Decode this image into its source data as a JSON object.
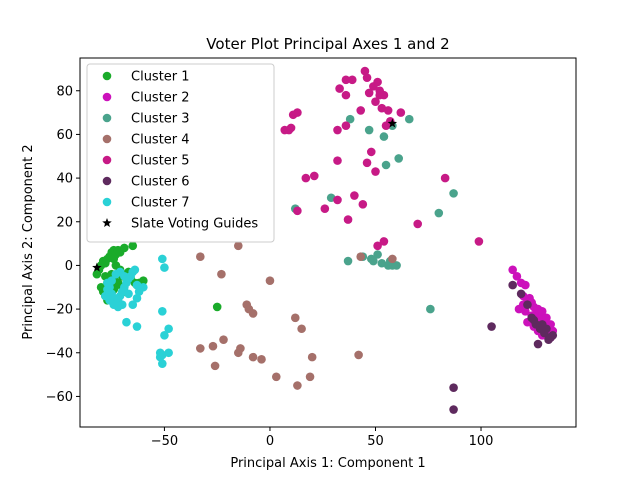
{
  "chart_data": {
    "type": "scatter",
    "title": "Voter Plot Principal Axes 1 and 2",
    "xlabel": "Principal Axis 1: Component 1",
    "ylabel": "Principal Axis 2: Component 2",
    "xlim": [
      -90,
      145
    ],
    "ylim": [
      -74,
      95
    ],
    "xticks": [
      -50,
      0,
      50,
      100
    ],
    "yticks": [
      -60,
      -40,
      -20,
      0,
      20,
      40,
      60,
      80
    ],
    "grid": false,
    "legend_position": "top-left",
    "series": [
      {
        "name": "Cluster 1",
        "color": "#1aab2a",
        "marker": "circle",
        "points": [
          [
            -82,
            -4
          ],
          [
            -81,
            -2
          ],
          [
            -80,
            0
          ],
          [
            -79,
            2
          ],
          [
            -78,
            1
          ],
          [
            -77,
            3
          ],
          [
            -76,
            4
          ],
          [
            -75,
            6
          ],
          [
            -74,
            7
          ],
          [
            -73,
            5
          ],
          [
            -72,
            7
          ],
          [
            -71,
            6
          ],
          [
            -69,
            8
          ],
          [
            -65,
            9
          ],
          [
            -74,
            3
          ],
          [
            -73,
            0
          ],
          [
            -71,
            -2
          ],
          [
            -70,
            -5
          ],
          [
            -68,
            -4
          ],
          [
            -67,
            -3
          ],
          [
            -66,
            -6
          ],
          [
            -64,
            -8
          ],
          [
            -63,
            -9
          ],
          [
            -62,
            -8
          ],
          [
            -61,
            -10
          ],
          [
            -60,
            -7
          ],
          [
            -78,
            -5
          ],
          [
            -77,
            -8
          ],
          [
            -76,
            -10
          ],
          [
            -75,
            -12
          ],
          [
            -74,
            -11
          ],
          [
            -73,
            -9
          ],
          [
            -72,
            -8
          ],
          [
            -80,
            -10
          ],
          [
            -79,
            -12
          ],
          [
            -78,
            -14
          ],
          [
            -77,
            -16
          ],
          [
            -76,
            -7
          ],
          [
            -75,
            -4
          ],
          [
            -74,
            -6
          ],
          [
            -72,
            -4
          ],
          [
            -70,
            -10
          ],
          [
            -69,
            -12
          ],
          [
            -25,
            -19
          ]
        ]
      },
      {
        "name": "Cluster 2",
        "color": "#cc11bb",
        "marker": "circle",
        "points": [
          [
            115,
            -2
          ],
          [
            117,
            -5
          ],
          [
            119,
            -8
          ],
          [
            121,
            -9
          ],
          [
            118,
            -20
          ],
          [
            120,
            -18
          ],
          [
            121,
            -21
          ],
          [
            122,
            -16
          ],
          [
            123,
            -15
          ],
          [
            124,
            -17
          ],
          [
            125,
            -19
          ],
          [
            126,
            -22
          ],
          [
            127,
            -20
          ],
          [
            128,
            -24
          ],
          [
            129,
            -21
          ],
          [
            130,
            -26
          ],
          [
            131,
            -24
          ],
          [
            132,
            -29
          ],
          [
            133,
            -27
          ],
          [
            134,
            -30
          ],
          [
            122,
            -26
          ],
          [
            125,
            -28
          ],
          [
            127,
            -30
          ],
          [
            129,
            -32
          ],
          [
            131,
            -31
          ],
          [
            133,
            -33
          ],
          [
            120,
            -14
          ],
          [
            124,
            -23
          ],
          [
            126,
            -25
          ],
          [
            128,
            -27
          ]
        ]
      },
      {
        "name": "Cluster 3",
        "color": "#4aa38c",
        "marker": "circle",
        "points": [
          [
            38,
            67
          ],
          [
            47,
            62
          ],
          [
            54,
            59
          ],
          [
            61,
            49
          ],
          [
            66,
            67
          ],
          [
            55,
            46
          ],
          [
            58,
            64
          ],
          [
            80,
            24
          ],
          [
            87,
            33
          ],
          [
            76,
            -20
          ],
          [
            12,
            26
          ],
          [
            29,
            31
          ],
          [
            37,
            2
          ],
          [
            44,
            4
          ],
          [
            48,
            3
          ],
          [
            53,
            1
          ],
          [
            56,
            0
          ],
          [
            58,
            0
          ],
          [
            60,
            0
          ],
          [
            51,
            5
          ],
          [
            49,
            2
          ],
          [
            57,
            2
          ]
        ]
      },
      {
        "name": "Cluster 4",
        "color": "#a5706a",
        "marker": "circle",
        "points": [
          [
            -33,
            4
          ],
          [
            -23,
            -4
          ],
          [
            -15,
            9
          ],
          [
            0,
            -7
          ],
          [
            -33,
            -38
          ],
          [
            -27,
            -37
          ],
          [
            -22,
            -34
          ],
          [
            -26,
            -46
          ],
          [
            -15,
            -40
          ],
          [
            -14,
            -38
          ],
          [
            -11,
            -18
          ],
          [
            -10,
            -20
          ],
          [
            -8,
            -22
          ],
          [
            -8,
            -42
          ],
          [
            -4,
            -43
          ],
          [
            3,
            -51
          ],
          [
            13,
            -55
          ],
          [
            12,
            -24
          ],
          [
            15,
            -29
          ],
          [
            19,
            -51
          ],
          [
            20,
            -42
          ],
          [
            42,
            -41
          ],
          [
            43,
            4
          ],
          [
            58,
            3
          ]
        ]
      },
      {
        "name": "Cluster 5",
        "color": "#c71a86",
        "marker": "circle",
        "points": [
          [
            45,
            89
          ],
          [
            36,
            85
          ],
          [
            39,
            85
          ],
          [
            49,
            82
          ],
          [
            51,
            84
          ],
          [
            47,
            79
          ],
          [
            52,
            80
          ],
          [
            54,
            78
          ],
          [
            33,
            81
          ],
          [
            36,
            78
          ],
          [
            50,
            75
          ],
          [
            53,
            72
          ],
          [
            56,
            71
          ],
          [
            43,
            71
          ],
          [
            62,
            70
          ],
          [
            9,
            62
          ],
          [
            11,
            69
          ],
          [
            13,
            70
          ],
          [
            7,
            62
          ],
          [
            10,
            63
          ],
          [
            32,
            62
          ],
          [
            36,
            64
          ],
          [
            55,
            64
          ],
          [
            57,
            66
          ],
          [
            48,
            52
          ],
          [
            46,
            47
          ],
          [
            32,
            48
          ],
          [
            50,
            43
          ],
          [
            17,
            40
          ],
          [
            21,
            41
          ],
          [
            40,
            32
          ],
          [
            44,
            28
          ],
          [
            32,
            30
          ],
          [
            26,
            26
          ],
          [
            13,
            25
          ],
          [
            37,
            21
          ],
          [
            70,
            19
          ],
          [
            51,
            9
          ],
          [
            54,
            11
          ],
          [
            83,
            40
          ],
          [
            99,
            11
          ],
          [
            52,
            78
          ],
          [
            46,
            86
          ]
        ]
      },
      {
        "name": "Cluster 6",
        "color": "#5e2a5e",
        "marker": "circle",
        "points": [
          [
            115,
            -9
          ],
          [
            119,
            -13
          ],
          [
            122,
            -18
          ],
          [
            124,
            -24
          ],
          [
            126,
            -27
          ],
          [
            128,
            -29
          ],
          [
            130,
            -31
          ],
          [
            131,
            -29
          ],
          [
            132,
            -34
          ],
          [
            133,
            -33
          ],
          [
            134,
            -32
          ],
          [
            127,
            -36
          ],
          [
            105,
            -28
          ],
          [
            87,
            -56
          ],
          [
            87,
            -66
          ],
          [
            129,
            -27
          ],
          [
            125,
            -25
          ]
        ]
      },
      {
        "name": "Cluster 7",
        "color": "#2ad1d6",
        "marker": "circle",
        "points": [
          [
            -77,
            -8
          ],
          [
            -76,
            -10
          ],
          [
            -75,
            -13
          ],
          [
            -74,
            -15
          ],
          [
            -73,
            -17
          ],
          [
            -72,
            -16
          ],
          [
            -71,
            -14
          ],
          [
            -70,
            -12
          ],
          [
            -69,
            -10
          ],
          [
            -68,
            -8
          ],
          [
            -67,
            -6
          ],
          [
            -66,
            -5
          ],
          [
            -65,
            -3
          ],
          [
            -64,
            -2
          ],
          [
            -63,
            -9
          ],
          [
            -62,
            -12
          ],
          [
            -63,
            -15
          ],
          [
            -65,
            -18
          ],
          [
            -67,
            -13
          ],
          [
            -70,
            -18
          ],
          [
            -72,
            -19
          ],
          [
            -74,
            -18
          ],
          [
            -76,
            -16
          ],
          [
            -78,
            -14
          ],
          [
            -77,
            -11
          ],
          [
            -75,
            -7
          ],
          [
            -73,
            -4
          ],
          [
            -71,
            -3
          ],
          [
            -69,
            -5
          ],
          [
            -68,
            -26
          ],
          [
            -63,
            -28
          ],
          [
            -60,
            -10
          ],
          [
            -51,
            3
          ],
          [
            -50,
            -1
          ],
          [
            -51,
            -21
          ],
          [
            -48,
            -29
          ],
          [
            -50,
            -32
          ],
          [
            -52,
            -40
          ],
          [
            -51,
            -41
          ],
          [
            -52,
            -42
          ],
          [
            -48,
            -40
          ],
          [
            -51,
            -45
          ]
        ]
      },
      {
        "name": "Slate Voting Guides",
        "color": "#000000",
        "marker": "star",
        "points": [
          [
            -82,
            -1
          ],
          [
            58,
            65
          ]
        ]
      }
    ]
  }
}
